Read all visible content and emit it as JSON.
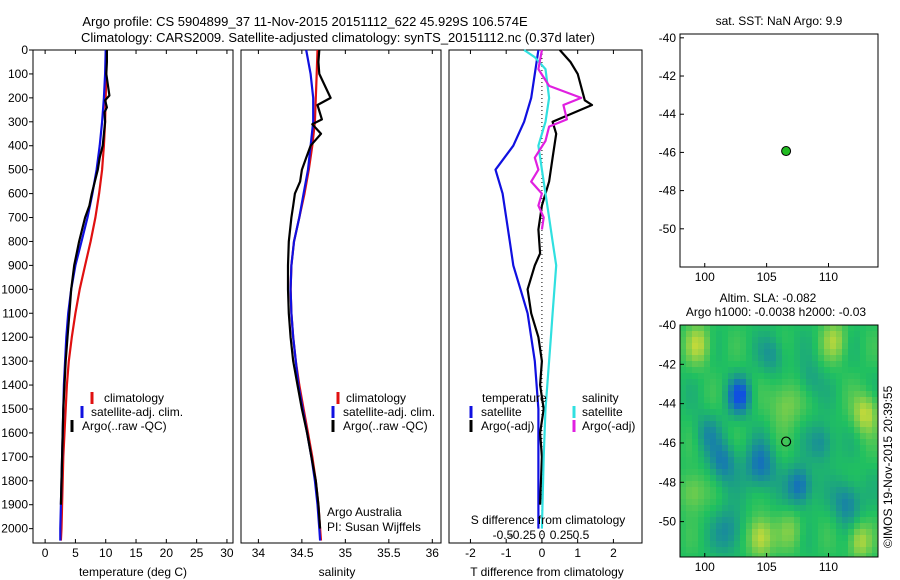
{
  "header": {
    "line1": "Argo profile: CS 5904899_37 11-Nov-2015 20151112_622 45.929S 106.574E",
    "line2": "Climatology: CARS2009. Satellite-adjusted climatology: synTS_20151112.nc (0.37d later)"
  },
  "colors": {
    "climatology": "#e01010",
    "satellite": "#1010e0",
    "argo": "#000000",
    "salinity_satellite": "#30e0e0",
    "salinity_argo": "#e020e0",
    "marker_fill": "#22bb22"
  },
  "chart_data": [
    {
      "type": "line",
      "id": "temperature",
      "xlabel": "temperature (deg C)",
      "xlim": [
        -2,
        31
      ],
      "ylim": [
        2060,
        0
      ],
      "xticks": [
        0,
        5,
        10,
        15,
        20,
        25,
        30
      ],
      "yticks": [
        0,
        100,
        200,
        300,
        400,
        500,
        600,
        700,
        800,
        900,
        1000,
        1100,
        1200,
        1300,
        1400,
        1500,
        1600,
        1700,
        1800,
        1900,
        2000
      ],
      "legend": [
        "climatology",
        "satellite-adj. clim.",
        "Argo(..raw -QC)"
      ],
      "series": [
        {
          "name": "climatology",
          "color_key": "climatology",
          "x": [
            10.1,
            10.1,
            10.0,
            9.9,
            9.7,
            9.4,
            8.9,
            8.3,
            7.5,
            6.6,
            5.7,
            5.0,
            4.4,
            3.9,
            3.6,
            3.4,
            3.2,
            3.0,
            2.9,
            2.8,
            2.7,
            2.6
          ],
          "y": [
            0,
            100,
            200,
            300,
            400,
            500,
            600,
            700,
            800,
            900,
            1000,
            1100,
            1200,
            1300,
            1400,
            1500,
            1600,
            1700,
            1800,
            1900,
            2000,
            2050
          ]
        },
        {
          "name": "satellite-adj. clim.",
          "color_key": "satellite",
          "x": [
            10.0,
            9.9,
            9.7,
            9.4,
            9.0,
            8.5,
            7.8,
            7.0,
            6.0,
            5.0,
            4.3,
            3.8,
            3.5,
            3.3,
            3.1,
            3.0,
            2.9,
            2.8,
            2.7,
            2.6,
            2.5,
            2.5
          ],
          "y": [
            0,
            100,
            200,
            300,
            400,
            500,
            600,
            700,
            800,
            900,
            1000,
            1100,
            1200,
            1300,
            1400,
            1500,
            1600,
            1700,
            1800,
            1900,
            2000,
            2050
          ]
        },
        {
          "name": "Argo(..raw -QC)",
          "color_key": "argo",
          "x": [
            10.2,
            10.2,
            10.1,
            10.6,
            9.9,
            10.2,
            9.8,
            9.9,
            9.7,
            9.5,
            9.0,
            8.7,
            8.2,
            7.7,
            7.3,
            6.6,
            5.6,
            4.8,
            4.3,
            4.0,
            3.7,
            3.4,
            3.2,
            3.0,
            2.9,
            2.8,
            2.7,
            2.6
          ],
          "y": [
            0,
            50,
            100,
            190,
            210,
            240,
            260,
            300,
            350,
            400,
            450,
            500,
            550,
            600,
            650,
            700,
            800,
            900,
            1000,
            1100,
            1200,
            1300,
            1400,
            1500,
            1600,
            1700,
            1800,
            1900
          ]
        }
      ]
    },
    {
      "type": "line",
      "id": "salinity",
      "xlabel": "salinity",
      "xlim": [
        33.8,
        36.1
      ],
      "ylim": [
        2060,
        0
      ],
      "xticks": [
        34,
        34.5,
        35,
        35.5,
        36
      ],
      "legend": [
        "climatology",
        "satellite-adj. clim.",
        "Argo(..raw -QC)"
      ],
      "annotation": [
        "Argo Australia",
        "PI: Susan Wijffels"
      ],
      "series": [
        {
          "name": "climatology",
          "color_key": "climatology",
          "x": [
            34.68,
            34.67,
            34.66,
            34.65,
            34.62,
            34.58,
            34.53,
            34.47,
            34.41,
            34.38,
            34.37,
            34.38,
            34.4,
            34.43,
            34.47,
            34.52,
            34.57,
            34.62,
            34.66,
            34.69,
            34.71,
            34.72
          ],
          "y": [
            0,
            100,
            200,
            300,
            400,
            500,
            600,
            700,
            800,
            900,
            1000,
            1100,
            1200,
            1300,
            1400,
            1500,
            1600,
            1700,
            1800,
            1900,
            2000,
            2050
          ]
        },
        {
          "name": "satellite-adj. clim.",
          "color_key": "satellite",
          "x": [
            34.55,
            34.6,
            34.63,
            34.63,
            34.6,
            34.57,
            34.52,
            34.47,
            34.41,
            34.38,
            34.37,
            34.38,
            34.4,
            34.43,
            34.46,
            34.51,
            34.56,
            34.61,
            34.65,
            34.68,
            34.7,
            34.71
          ],
          "y": [
            0,
            100,
            200,
            300,
            400,
            500,
            600,
            700,
            800,
            900,
            1000,
            1100,
            1200,
            1300,
            1400,
            1500,
            1600,
            1700,
            1800,
            1900,
            2000,
            2050
          ]
        },
        {
          "name": "Argo(..raw -QC)",
          "color_key": "argo",
          "x": [
            34.7,
            34.69,
            34.7,
            34.83,
            34.68,
            34.73,
            34.62,
            34.72,
            34.6,
            34.55,
            34.5,
            34.48,
            34.42,
            34.4,
            34.38,
            34.35,
            34.34,
            34.34,
            34.35,
            34.37,
            34.4,
            34.45,
            34.5,
            34.56,
            34.61,
            34.66,
            34.69,
            34.71
          ],
          "y": [
            0,
            50,
            100,
            200,
            230,
            290,
            310,
            350,
            400,
            450,
            500,
            550,
            600,
            650,
            700,
            800,
            900,
            1000,
            1100,
            1200,
            1300,
            1400,
            1500,
            1600,
            1700,
            1800,
            1900,
            2000
          ]
        }
      ]
    },
    {
      "type": "line",
      "id": "difference",
      "xlabel": "T difference from climatology",
      "top_label": "S difference from climatology",
      "xlim": [
        -2.6,
        2.8
      ],
      "ylim": [
        2060,
        0
      ],
      "xticks": [
        -2,
        -1,
        0,
        1,
        2
      ],
      "top_ticks": [
        -0.5,
        -0.25,
        0,
        0.25,
        0.5
      ],
      "top_tick_labels": [
        "-0.5",
        "-0.25",
        "0",
        "0.25",
        "0.5"
      ],
      "legend_columns": [
        {
          "title": "temperature",
          "items": [
            "satellite",
            "Argo(-adj)"
          ]
        },
        {
          "title": "salinity",
          "items": [
            "satellite",
            "Argo(-adj)"
          ]
        }
      ],
      "series": [
        {
          "name": "temperature satellite",
          "color_key": "satellite",
          "x": [
            -0.1,
            -0.2,
            -0.3,
            -0.5,
            -0.8,
            -1.3,
            -1.1,
            -1.0,
            -0.9,
            -0.8,
            -0.6,
            -0.4,
            -0.3,
            -0.2,
            -0.15,
            -0.1,
            -0.1,
            -0.1,
            -0.1,
            -0.1,
            -0.1
          ],
          "y": [
            0,
            100,
            200,
            300,
            400,
            500,
            600,
            700,
            800,
            900,
            1000,
            1100,
            1200,
            1300,
            1400,
            1500,
            1600,
            1700,
            1800,
            1900,
            2000
          ]
        },
        {
          "name": "temperature Argo(-adj)",
          "color_key": "argo",
          "x": [
            0.5,
            0.8,
            1.0,
            1.2,
            1.4,
            0.3,
            0.4,
            0.3,
            0.2,
            0.0,
            -0.1,
            -0.05,
            -0.2,
            -0.4,
            -0.3,
            -0.1,
            0.0,
            -0.05,
            0.05,
            -0.05,
            0.0,
            -0.05
          ],
          "y": [
            0,
            50,
            100,
            210,
            230,
            300,
            350,
            450,
            550,
            650,
            750,
            850,
            900,
            1000,
            1100,
            1200,
            1300,
            1400,
            1500,
            1600,
            1700,
            1900
          ]
        },
        {
          "name": "salinity satellite",
          "color_key": "salinity_satellite",
          "x": [
            -0.5,
            -0.2,
            0.1,
            0.2,
            0.1,
            -0.1,
            0.0,
            0.1,
            0.2,
            0.3,
            0.4,
            0.3,
            0.25,
            0.2,
            0.15,
            0.1,
            0.05,
            0.0
          ],
          "y": [
            0,
            30,
            80,
            200,
            300,
            400,
            500,
            600,
            700,
            800,
            900,
            1100,
            1200,
            1300,
            1400,
            1500,
            1700,
            2000
          ]
        },
        {
          "name": "salinity Argo(-adj)",
          "color_key": "salinity_argo",
          "x": [
            0.0,
            -0.1,
            0.2,
            1.1,
            0.6,
            0.7,
            0.2,
            0.1,
            -0.2,
            -0.1,
            -0.3,
            0.0,
            -0.1,
            0.05,
            0.0
          ],
          "y": [
            0,
            80,
            150,
            200,
            230,
            290,
            320,
            380,
            450,
            500,
            550,
            600,
            650,
            700,
            750
          ]
        }
      ]
    },
    {
      "type": "scatter",
      "id": "sst_map",
      "title": "sat. SST: NaN Argo: 9.9",
      "xlim": [
        98,
        114
      ],
      "ylim": [
        -52,
        -39.8
      ],
      "xticks": [
        100,
        105,
        110
      ],
      "yticks": [
        -40,
        -42,
        -44,
        -46,
        -48,
        -50
      ],
      "points": [
        {
          "x": 106.574,
          "y": -45.929
        }
      ]
    },
    {
      "type": "heatmap",
      "id": "sla_map",
      "title_lines": [
        "Altim. SLA: -0.082",
        "Argo h1000: -0.0038 h2000: -0.03"
      ],
      "xlim": [
        98,
        114
      ],
      "ylim": [
        -51.8,
        -40
      ],
      "xticks": [
        100,
        105,
        110
      ],
      "yticks": [
        -40,
        -42,
        -44,
        -46,
        -48,
        -50
      ],
      "points": [
        {
          "x": 106.574,
          "y": -45.929
        }
      ],
      "field_colors": {
        "low": "#1050e0",
        "mid": "#20c060",
        "high": "#f0e030"
      },
      "blobs": [
        {
          "x": 102.8,
          "y": -43.6,
          "v": -1.0,
          "r": 0.9
        },
        {
          "x": 101.5,
          "y": -47.0,
          "v": -0.6,
          "r": 1.1
        },
        {
          "x": 104.5,
          "y": -47.2,
          "v": -0.7,
          "r": 1.2
        },
        {
          "x": 100.2,
          "y": -45.5,
          "v": -0.4,
          "r": 1.0
        },
        {
          "x": 107.7,
          "y": -48.2,
          "v": -0.8,
          "r": 1.0
        },
        {
          "x": 109.5,
          "y": -46.0,
          "v": -0.5,
          "r": 1.0
        },
        {
          "x": 111.5,
          "y": -49.0,
          "v": -0.6,
          "r": 1.1
        },
        {
          "x": 105.5,
          "y": -41.5,
          "v": -0.4,
          "r": 1.0
        },
        {
          "x": 108.5,
          "y": -42.8,
          "v": -0.3,
          "r": 1.0
        },
        {
          "x": 102.0,
          "y": -50.5,
          "v": -0.5,
          "r": 1.2
        },
        {
          "x": 113.0,
          "y": -44.5,
          "v": 0.8,
          "r": 1.0
        },
        {
          "x": 104.5,
          "y": -50.8,
          "v": 0.9,
          "r": 1.0
        },
        {
          "x": 99.5,
          "y": -41.0,
          "v": 0.7,
          "r": 1.0
        },
        {
          "x": 106.5,
          "y": -44.0,
          "v": 0.5,
          "r": 1.2
        },
        {
          "x": 110.5,
          "y": -40.8,
          "v": 0.6,
          "r": 1.0
        },
        {
          "x": 112.5,
          "y": -51.0,
          "v": 0.7,
          "r": 0.9
        },
        {
          "x": 99.0,
          "y": -48.5,
          "v": 0.5,
          "r": 1.0
        },
        {
          "x": 107.0,
          "y": -50.5,
          "v": 0.4,
          "r": 1.0
        }
      ]
    }
  ],
  "watermark": "©IMOS 19-Nov-2015 20:39:55"
}
